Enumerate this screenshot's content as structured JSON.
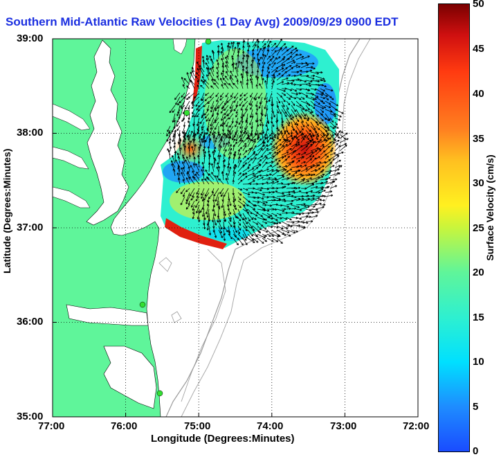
{
  "title": "Southern Mid-Atlantic Raw Velocities (1 Day Avg) 2009/09/29 0900 EDT",
  "axes": {
    "xlabel": "Longitude (Degrees:Minutes)",
    "ylabel": "Latitude (Degrees:Minutes)",
    "x_ticks": [
      "77:00",
      "76:00",
      "75:00",
      "74:00",
      "73:00",
      "72:00"
    ],
    "y_ticks": [
      "39:00",
      "38:00",
      "37:00",
      "36:00",
      "35:00"
    ],
    "grid": "dotted"
  },
  "colorbar": {
    "label": "Surface Velocity (cm/s)",
    "ticks": [
      "50",
      "45",
      "40",
      "35",
      "30",
      "25",
      "20",
      "15",
      "10",
      "5",
      "0"
    ],
    "min": 0,
    "max": 50
  },
  "colors": {
    "land": "#5ff59a",
    "water": "#ffffff",
    "title": "#1a2ee0",
    "station": "#32e032"
  },
  "stations": [
    {
      "name": "station-1"
    },
    {
      "name": "station-2"
    },
    {
      "name": "station-3"
    },
    {
      "name": "station-4"
    }
  ]
}
